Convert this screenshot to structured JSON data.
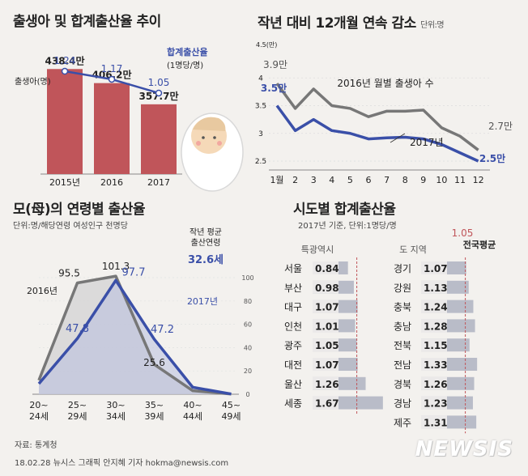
{
  "panel1": {
    "title": "출생아 및 합계출산율 추이",
    "births_label": "출생아(명)",
    "rate_label": "합계출산율",
    "rate_unit": "(1명당/명)",
    "chart_data": {
      "type": "bar",
      "categories": [
        "2015년",
        "2016",
        "2017"
      ],
      "series": [
        {
          "name": "출생아(명)",
          "values": [
            438.4,
            406.2,
            357.7
          ],
          "labels": [
            "438.4만",
            "406.2만",
            "357.7만"
          ]
        },
        {
          "name": "합계출산율",
          "values": [
            1.24,
            1.17,
            1.05
          ],
          "labels": [
            "1.24",
            "1.17",
            "1.05"
          ]
        }
      ],
      "colors": {
        "bar": "#c0555a",
        "line": "#3a4fa8"
      }
    }
  },
  "panel2": {
    "title": "작년 대비 12개월 연속 감소",
    "unit": "단위:명",
    "chart_data": {
      "type": "line",
      "categories": [
        "1월",
        "2",
        "3",
        "4",
        "5",
        "6",
        "7",
        "8",
        "9",
        "10",
        "11",
        "12"
      ],
      "y_axis_unit": "4.5(만)",
      "yticks": [
        "4",
        "3.5",
        "3",
        "2.5"
      ],
      "ylim": [
        2.3,
        4.5
      ],
      "series": [
        {
          "name": "2016년 월별 출생아 수",
          "values": [
            3.9,
            3.45,
            3.8,
            3.5,
            3.45,
            3.3,
            3.4,
            3.4,
            3.42,
            3.1,
            2.95,
            2.7
          ],
          "colors": "#777777"
        },
        {
          "name": "2017년",
          "values": [
            3.5,
            3.05,
            3.25,
            3.05,
            3.0,
            2.9,
            2.92,
            2.93,
            2.9,
            2.8,
            2.65,
            2.5
          ],
          "colors": "#3a4fa8"
        }
      ],
      "start_labels": [
        "3.9만",
        "3.5만"
      ],
      "end_labels": [
        "2.7만",
        "2.5만"
      ]
    }
  },
  "panel3": {
    "title": "모(母)의 연령별 출산율",
    "unit": "단위:명/해당연령 여성인구 천명당",
    "avg_age_label": "작년 평균\n출산연령",
    "avg_age_value": "32.6세",
    "chart_data": {
      "type": "area",
      "categories": [
        "20~\n24세",
        "25~\n29세",
        "30~\n34세",
        "35~\n39세",
        "40~\n44세",
        "45~\n49세"
      ],
      "yticks": [
        "100",
        "80",
        "60",
        "40",
        "20",
        "0"
      ],
      "ylim": [
        0,
        100
      ],
      "series": [
        {
          "name": "2016년",
          "values": [
            12,
            95.5,
            101.3,
            25.6,
            3,
            0.2
          ],
          "labels": [
            "",
            "95.5",
            "101.3",
            "25.6",
            "",
            ""
          ],
          "colors": "#777777"
        },
        {
          "name": "2017년",
          "values": [
            9,
            47.8,
            97.7,
            47.2,
            6,
            0.2
          ],
          "labels": [
            "",
            "47.8",
            "97.7",
            "47.2",
            "",
            ""
          ],
          "colors": "#3a4fa8"
        }
      ]
    }
  },
  "panel4": {
    "title": "시도별 합계출산율",
    "unit": "2017년 기준, 단위:1명당/명",
    "national_value": "1.05",
    "national_label": "전국평균",
    "metro_header": "특광역시",
    "province_header": "도 지역",
    "chart_data": {
      "type": "bar",
      "national_avg": 1.05,
      "metro": [
        {
          "name": "서울",
          "value": 0.84,
          "label": "0.84"
        },
        {
          "name": "부산",
          "value": 0.98,
          "label": "0.98"
        },
        {
          "name": "대구",
          "value": 1.07,
          "label": "1.07"
        },
        {
          "name": "인천",
          "value": 1.01,
          "label": "1.01"
        },
        {
          "name": "광주",
          "value": 1.05,
          "label": "1.05"
        },
        {
          "name": "대전",
          "value": 1.07,
          "label": "1.07"
        },
        {
          "name": "울산",
          "value": 1.26,
          "label": "1.26"
        },
        {
          "name": "세종",
          "value": 1.67,
          "label": "1.67"
        }
      ],
      "province": [
        {
          "name": "경기",
          "value": 1.07,
          "label": "1.07"
        },
        {
          "name": "강원",
          "value": 1.13,
          "label": "1.13"
        },
        {
          "name": "충북",
          "value": 1.24,
          "label": "1.24"
        },
        {
          "name": "충남",
          "value": 1.28,
          "label": "1.28"
        },
        {
          "name": "전북",
          "value": 1.15,
          "label": "1.15"
        },
        {
          "name": "전남",
          "value": 1.33,
          "label": "1.33"
        },
        {
          "name": "경북",
          "value": 1.26,
          "label": "1.26"
        },
        {
          "name": "경남",
          "value": 1.23,
          "label": "1.23"
        },
        {
          "name": "제주",
          "value": 1.31,
          "label": "1.31"
        }
      ]
    }
  },
  "footer": {
    "source": "자료: 통계청",
    "credit": "18.02.28 뉴시스 그래픽 안지혜 기자 hokma@newsis.com",
    "brand": "NEWSIS"
  }
}
